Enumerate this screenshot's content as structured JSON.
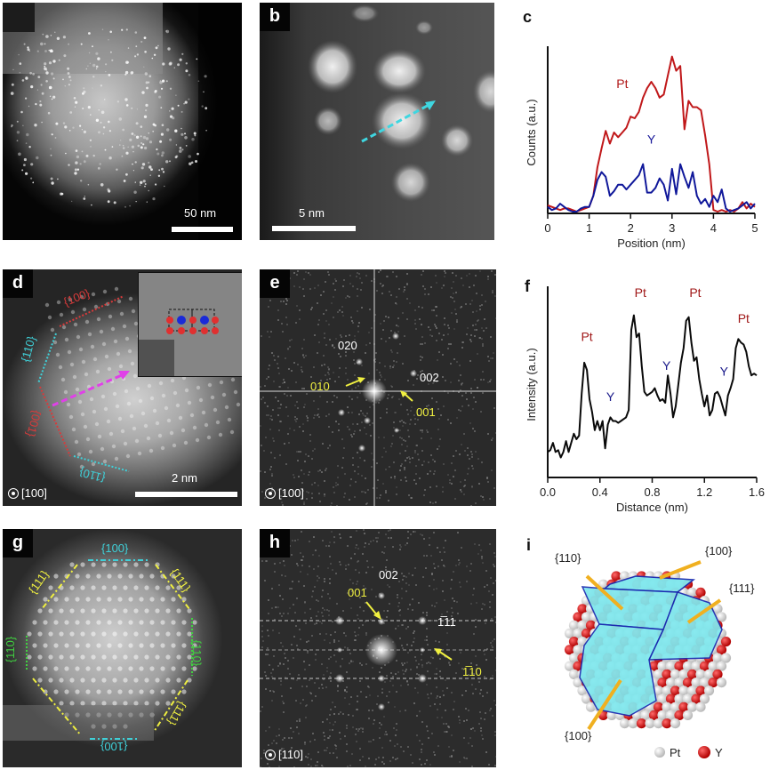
{
  "figure": {
    "panels": {
      "a": {
        "letter": "a",
        "scale_bar_label": "50 nm"
      },
      "b": {
        "letter": "b",
        "scale_bar_label": "5 nm",
        "arrow_color": "#3fd6e0"
      },
      "c": {
        "letter": "c"
      },
      "d": {
        "letter": "d",
        "scale_bar_label": "2 nm",
        "zone_axis": "[100]",
        "facet_labels": [
          {
            "text": "{100}",
            "color": "#d83a3a"
          },
          {
            "text": "{110}",
            "color": "#3fd0d8"
          },
          {
            "text": "{001}",
            "color": "#d83a3a"
          },
          {
            "text": "{110}",
            "color": "#3fd0d8"
          }
        ],
        "inset_atom_colors": {
          "Pt": "#e03030",
          "Y": "#1a2ad8"
        },
        "arrow_color": "#e040e8"
      },
      "e": {
        "letter": "e",
        "zone_axis": "[100]",
        "spot_labels": [
          {
            "text": "020",
            "color": "#ffffff"
          },
          {
            "text": "002",
            "color": "#ffffff"
          },
          {
            "text": "010",
            "color": "#f0f040"
          },
          {
            "text": "001",
            "color": "#f0f040"
          }
        ]
      },
      "f": {
        "letter": "f"
      },
      "g": {
        "letter": "g",
        "facet_labels": [
          {
            "text": "{100}",
            "color": "#3fd0d8"
          },
          {
            "text": "{111}",
            "color": "#f0f040"
          },
          {
            "text": "{111}",
            "color": "#f0f040"
          },
          {
            "text": "{110}",
            "color": "#40d040"
          },
          {
            "text": "{110}",
            "color": "#40d040"
          },
          {
            "text": "{111}",
            "color": "#f0f040"
          },
          {
            "text": "{100}",
            "color": "#3fd0d8"
          }
        ]
      },
      "h": {
        "letter": "h",
        "zone_axis": "[110]",
        "spot_labels": [
          {
            "text": "002",
            "color": "#ffffff"
          },
          {
            "text": "001",
            "color": "#f0f040"
          },
          {
            "text": "1̅1̅1",
            "display": "1̅11",
            "color": "#ffffff"
          },
          {
            "text": "1̅10",
            "color": "#f0f040"
          }
        ]
      },
      "i": {
        "letter": "i",
        "facet_labels": [
          "{110}",
          "{100}",
          "{111}",
          "{100}"
        ],
        "legend": [
          {
            "label": "Pt",
            "color": "#e8e8e8"
          },
          {
            "label": "Y",
            "color": "#e01818"
          }
        ],
        "facet_color": "#7fe8ee",
        "arrow_color": "#f0b020"
      }
    }
  },
  "chart_data": [
    {
      "panel": "c",
      "type": "line",
      "title": "",
      "xlabel": "Position (nm)",
      "ylabel": "Counts (a.u.)",
      "xlim": [
        0,
        5
      ],
      "ylim": [
        0,
        1
      ],
      "xticks": [
        "0",
        "1",
        "2",
        "3",
        "4",
        "5"
      ],
      "grid": false,
      "legend": "inline",
      "annotations": [
        {
          "text": "Pt",
          "color": "#b01818",
          "x": 1.8,
          "y": 0.78
        },
        {
          "text": "Y",
          "color": "#1a1a9a",
          "x": 2.5,
          "y": 0.43
        }
      ],
      "series": [
        {
          "name": "Pt",
          "color": "#c0181a",
          "x": [
            0,
            0.1,
            0.2,
            0.3,
            0.4,
            0.5,
            0.6,
            0.7,
            0.8,
            0.9,
            1.0,
            1.1,
            1.2,
            1.3,
            1.4,
            1.5,
            1.6,
            1.7,
            1.8,
            1.9,
            2.0,
            2.1,
            2.2,
            2.3,
            2.4,
            2.5,
            2.6,
            2.7,
            2.8,
            2.9,
            3.0,
            3.1,
            3.2,
            3.3,
            3.4,
            3.5,
            3.6,
            3.7,
            3.8,
            3.9,
            4.0,
            4.1,
            4.2,
            4.3,
            4.4,
            4.5,
            4.6,
            4.7,
            4.8,
            4.9,
            5.0
          ],
          "values": [
            0.04,
            0.03,
            0.02,
            0.01,
            0.02,
            0.02,
            0.01,
            0.0,
            0.01,
            0.02,
            0.03,
            0.1,
            0.28,
            0.4,
            0.51,
            0.43,
            0.5,
            0.47,
            0.5,
            0.53,
            0.6,
            0.59,
            0.63,
            0.72,
            0.78,
            0.82,
            0.78,
            0.72,
            0.74,
            0.86,
            0.98,
            0.89,
            0.92,
            0.52,
            0.7,
            0.66,
            0.66,
            0.64,
            0.48,
            0.3,
            0.01,
            0.0,
            0.01,
            0.0,
            0.01,
            0.0,
            0.02,
            0.06,
            0.02,
            0.05,
            0.03
          ]
        },
        {
          "name": "Y",
          "color": "#10189a",
          "x": [
            0,
            0.1,
            0.2,
            0.3,
            0.4,
            0.5,
            0.6,
            0.7,
            0.8,
            0.9,
            1.0,
            1.1,
            1.2,
            1.3,
            1.4,
            1.5,
            1.6,
            1.7,
            1.8,
            1.9,
            2.0,
            2.1,
            2.2,
            2.3,
            2.4,
            2.5,
            2.6,
            2.7,
            2.8,
            2.9,
            3.0,
            3.1,
            3.2,
            3.3,
            3.4,
            3.5,
            3.6,
            3.7,
            3.8,
            3.9,
            4.0,
            4.1,
            4.2,
            4.3,
            4.4,
            4.5,
            4.6,
            4.7,
            4.8,
            4.9,
            5.0
          ],
          "values": [
            0.03,
            0.01,
            0.02,
            0.05,
            0.03,
            0.01,
            0.0,
            0.0,
            0.02,
            0.03,
            0.03,
            0.1,
            0.2,
            0.25,
            0.22,
            0.1,
            0.13,
            0.17,
            0.17,
            0.14,
            0.17,
            0.2,
            0.23,
            0.3,
            0.12,
            0.12,
            0.15,
            0.21,
            0.17,
            0.07,
            0.27,
            0.11,
            0.3,
            0.22,
            0.15,
            0.25,
            0.1,
            0.05,
            0.08,
            0.03,
            0.1,
            0.06,
            0.14,
            0.02,
            0.0,
            0.01,
            0.02,
            0.04,
            0.06,
            0.02,
            0.05
          ]
        }
      ]
    },
    {
      "panel": "f",
      "type": "line",
      "title": "",
      "xlabel": "Distance (nm)",
      "ylabel": "Intensity (a.u.)",
      "xlim": [
        0,
        1.6
      ],
      "ylim": [
        0,
        1
      ],
      "xticks": [
        "0.0",
        "0.4",
        "0.8",
        "1.2",
        "1.6"
      ],
      "grid": false,
      "legend": "none",
      "annotations": [
        {
          "text": "Pt",
          "color": "#a01818",
          "x": 0.3,
          "y": 0.74
        },
        {
          "text": "Y",
          "color": "#1a1a8a",
          "x": 0.48,
          "y": 0.41
        },
        {
          "text": "Pt",
          "color": "#a01818",
          "x": 0.71,
          "y": 0.98
        },
        {
          "text": "Y",
          "color": "#1a1a8a",
          "x": 0.91,
          "y": 0.58
        },
        {
          "text": "Pt",
          "color": "#a01818",
          "x": 1.13,
          "y": 0.98
        },
        {
          "text": "Y",
          "color": "#1a1a8a",
          "x": 1.35,
          "y": 0.55
        },
        {
          "text": "Pt",
          "color": "#a01818",
          "x": 1.5,
          "y": 0.84
        }
      ],
      "series": [
        {
          "name": "Intensity",
          "color": "#0a0a0a",
          "x": [
            0.0,
            0.02,
            0.04,
            0.06,
            0.08,
            0.1,
            0.12,
            0.14,
            0.16,
            0.18,
            0.2,
            0.22,
            0.24,
            0.26,
            0.28,
            0.3,
            0.32,
            0.34,
            0.36,
            0.38,
            0.4,
            0.42,
            0.44,
            0.46,
            0.48,
            0.5,
            0.52,
            0.54,
            0.56,
            0.58,
            0.6,
            0.62,
            0.64,
            0.66,
            0.68,
            0.7,
            0.72,
            0.74,
            0.76,
            0.78,
            0.8,
            0.82,
            0.84,
            0.86,
            0.88,
            0.9,
            0.92,
            0.94,
            0.96,
            0.98,
            1.0,
            1.02,
            1.04,
            1.06,
            1.08,
            1.1,
            1.12,
            1.14,
            1.16,
            1.18,
            1.2,
            1.22,
            1.24,
            1.26,
            1.28,
            1.3,
            1.32,
            1.34,
            1.36,
            1.38,
            1.4,
            1.42,
            1.44,
            1.46,
            1.48,
            1.5,
            1.52,
            1.54,
            1.56,
            1.58,
            1.6
          ],
          "values": [
            0.13,
            0.14,
            0.18,
            0.13,
            0.14,
            0.1,
            0.13,
            0.19,
            0.13,
            0.18,
            0.23,
            0.2,
            0.22,
            0.45,
            0.62,
            0.58,
            0.42,
            0.35,
            0.25,
            0.3,
            0.25,
            0.3,
            0.15,
            0.28,
            0.32,
            0.3,
            0.3,
            0.29,
            0.3,
            0.31,
            0.32,
            0.36,
            0.8,
            0.88,
            0.76,
            0.78,
            0.6,
            0.46,
            0.44,
            0.45,
            0.46,
            0.48,
            0.44,
            0.41,
            0.42,
            0.4,
            0.55,
            0.45,
            0.32,
            0.38,
            0.5,
            0.62,
            0.7,
            0.85,
            0.87,
            0.73,
            0.63,
            0.65,
            0.53,
            0.45,
            0.38,
            0.44,
            0.33,
            0.36,
            0.45,
            0.46,
            0.43,
            0.38,
            0.33,
            0.44,
            0.48,
            0.53,
            0.7,
            0.75,
            0.73,
            0.72,
            0.68,
            0.6,
            0.55,
            0.56,
            0.55
          ]
        }
      ]
    }
  ]
}
